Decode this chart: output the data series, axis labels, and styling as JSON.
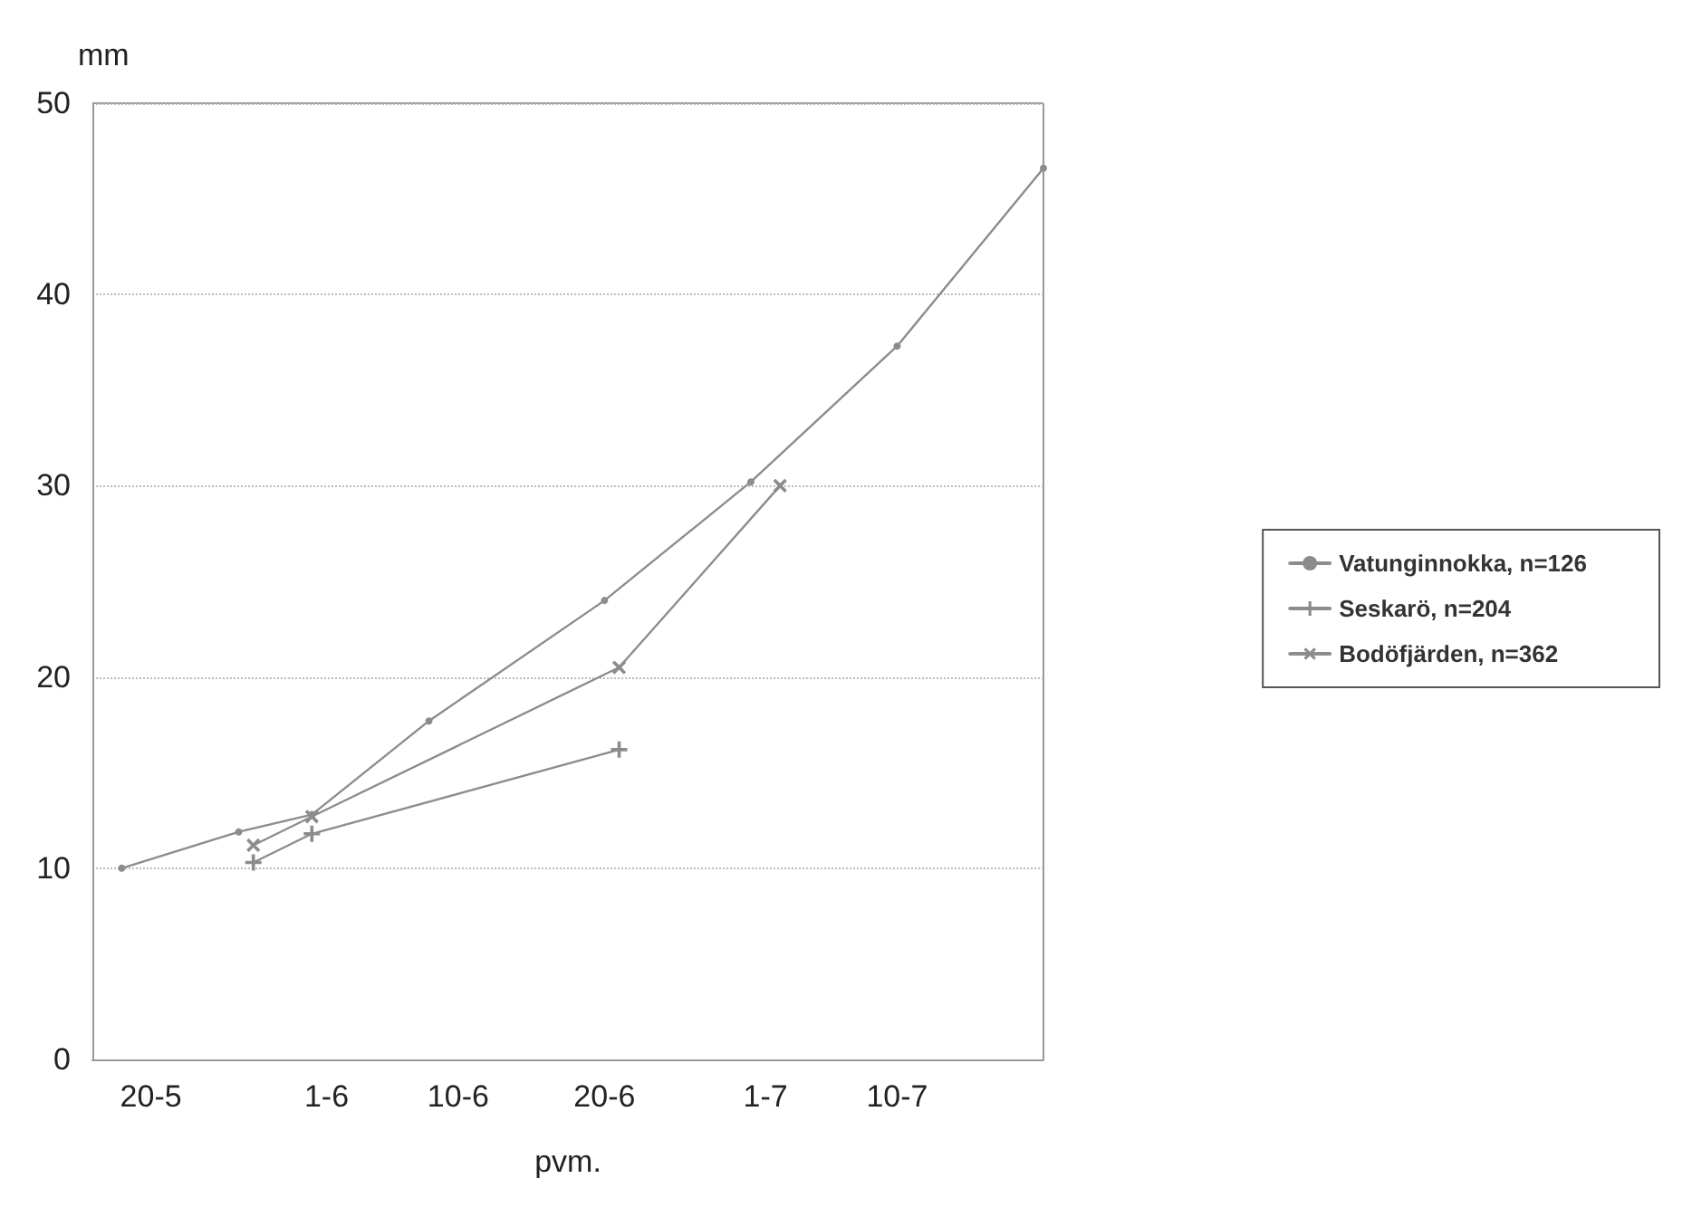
{
  "chart_data": {
    "type": "line",
    "xlabel": "pvm.",
    "ylabel": "mm",
    "xlim": [
      "--05-16",
      "--07-20"
    ],
    "xticks": [
      {
        "value": "--05-20",
        "label": "20-5"
      },
      {
        "value": "--06-01",
        "label": "1-6"
      },
      {
        "value": "--06-10",
        "label": "10-6"
      },
      {
        "value": "--06-20",
        "label": "20-6"
      },
      {
        "value": "--07-01",
        "label": "1-7"
      },
      {
        "value": "--07-10",
        "label": "10-7"
      }
    ],
    "ylim": [
      0,
      50
    ],
    "yticks": [
      0,
      10,
      20,
      30,
      40,
      50
    ],
    "grid": "y",
    "legend": "right",
    "line_style": "solid",
    "series": [
      {
        "name": "Vatunginnokka, n=126",
        "color": "#8c8c8c",
        "marker": "circle",
        "x": [
          "--05-18",
          "--05-26",
          "--05-31",
          "--06-08",
          "--06-20",
          "--06-30",
          "--07-10",
          "--07-20"
        ],
        "values": [
          10,
          11.9,
          12.8,
          17.7,
          24,
          30.2,
          37.3,
          46.6
        ]
      },
      {
        "name": "Seskarö, n=204",
        "color": "#8c8c8c",
        "marker": "cross",
        "x": [
          "--05-27",
          "--05-31",
          "--06-21"
        ],
        "values": [
          10.3,
          11.8,
          16.2
        ]
      },
      {
        "name": "Bodöfjärden, n=362",
        "color": "#8c8c8c",
        "marker": "cross",
        "x": [
          "--05-27",
          "--05-31",
          "--06-21",
          "--07-02"
        ],
        "values": [
          11.2,
          12.7,
          20.5,
          30
        ]
      }
    ]
  }
}
